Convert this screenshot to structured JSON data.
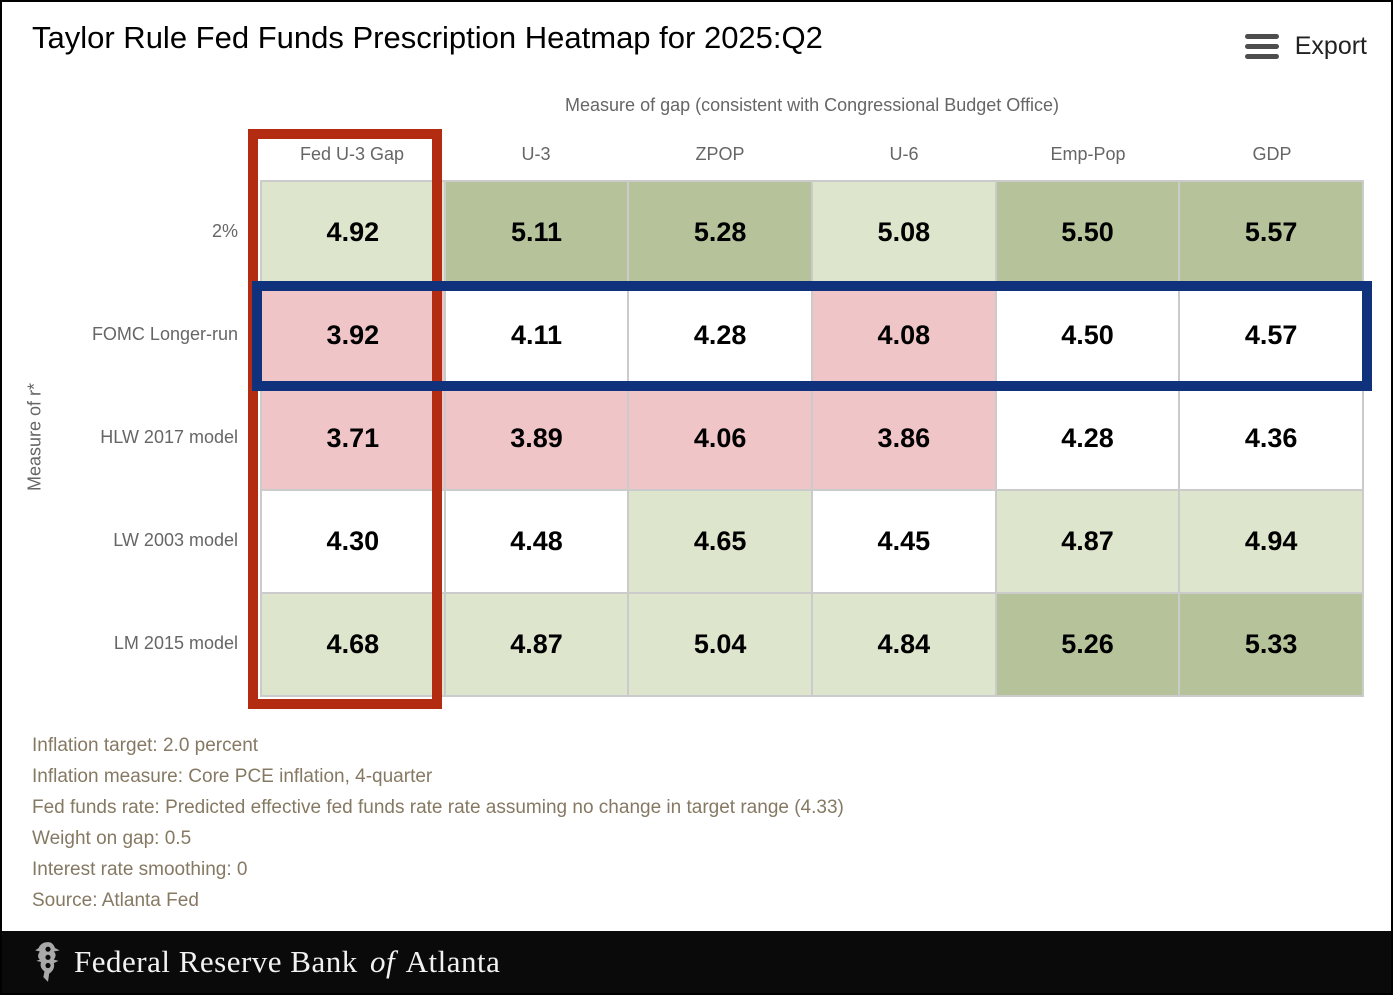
{
  "header": {
    "title": "Taylor Rule Fed Funds Prescription Heatmap for 2025:Q2",
    "export_label": "Export"
  },
  "chart_data": {
    "type": "heatmap",
    "title": "Taylor Rule Fed Funds Prescription Heatmap for 2025:Q2",
    "x_axis_label": "Measure of gap (consistent with Congressional Budget Office)",
    "y_axis_label": "Measure of r*",
    "columns": [
      "Fed U-3 Gap",
      "U-3",
      "ZPOP",
      "U-6",
      "Emp-Pop",
      "GDP"
    ],
    "rows": [
      "2%",
      "FOMC Longer-run",
      "HLW 2017 model",
      "LW 2003 model",
      "LM 2015 model"
    ],
    "values": [
      [
        4.92,
        5.11,
        5.28,
        5.08,
        5.5,
        5.57
      ],
      [
        3.92,
        4.11,
        4.28,
        4.08,
        4.5,
        4.57
      ],
      [
        3.71,
        3.89,
        4.06,
        3.86,
        4.28,
        4.36
      ],
      [
        4.3,
        4.48,
        4.65,
        4.45,
        4.87,
        4.94
      ],
      [
        4.68,
        4.87,
        5.04,
        4.84,
        5.26,
        5.33
      ]
    ],
    "color_scale": [
      {
        "upper": 4.1,
        "color": "#f0c5c8"
      },
      {
        "upper": 4.6,
        "color": "#ffffff"
      },
      {
        "upper": 5.1,
        "color": "#dde5cc"
      },
      {
        "upper": 999,
        "color": "#b5c29a"
      }
    ],
    "highlights": {
      "column": {
        "label": "Fed U-3 Gap",
        "index": 0,
        "box_color": "#b32b11"
      },
      "row": {
        "label": "FOMC Longer-run",
        "index": 1,
        "box_color": "#10327d"
      }
    }
  },
  "footnotes": [
    "Inflation target: 2.0 percent",
    "Inflation measure: Core PCE inflation, 4-quarter",
    "Fed funds rate: Predicted effective fed funds rate rate assuming no change in target range (4.33)",
    "Weight on gap: 0.5",
    "Interest rate smoothing: 0",
    "Source: Atlanta Fed"
  ],
  "footer": {
    "bank_name_prefix": "Federal Reserve Bank",
    "bank_name_of": "of",
    "bank_name_suffix": "Atlanta"
  }
}
